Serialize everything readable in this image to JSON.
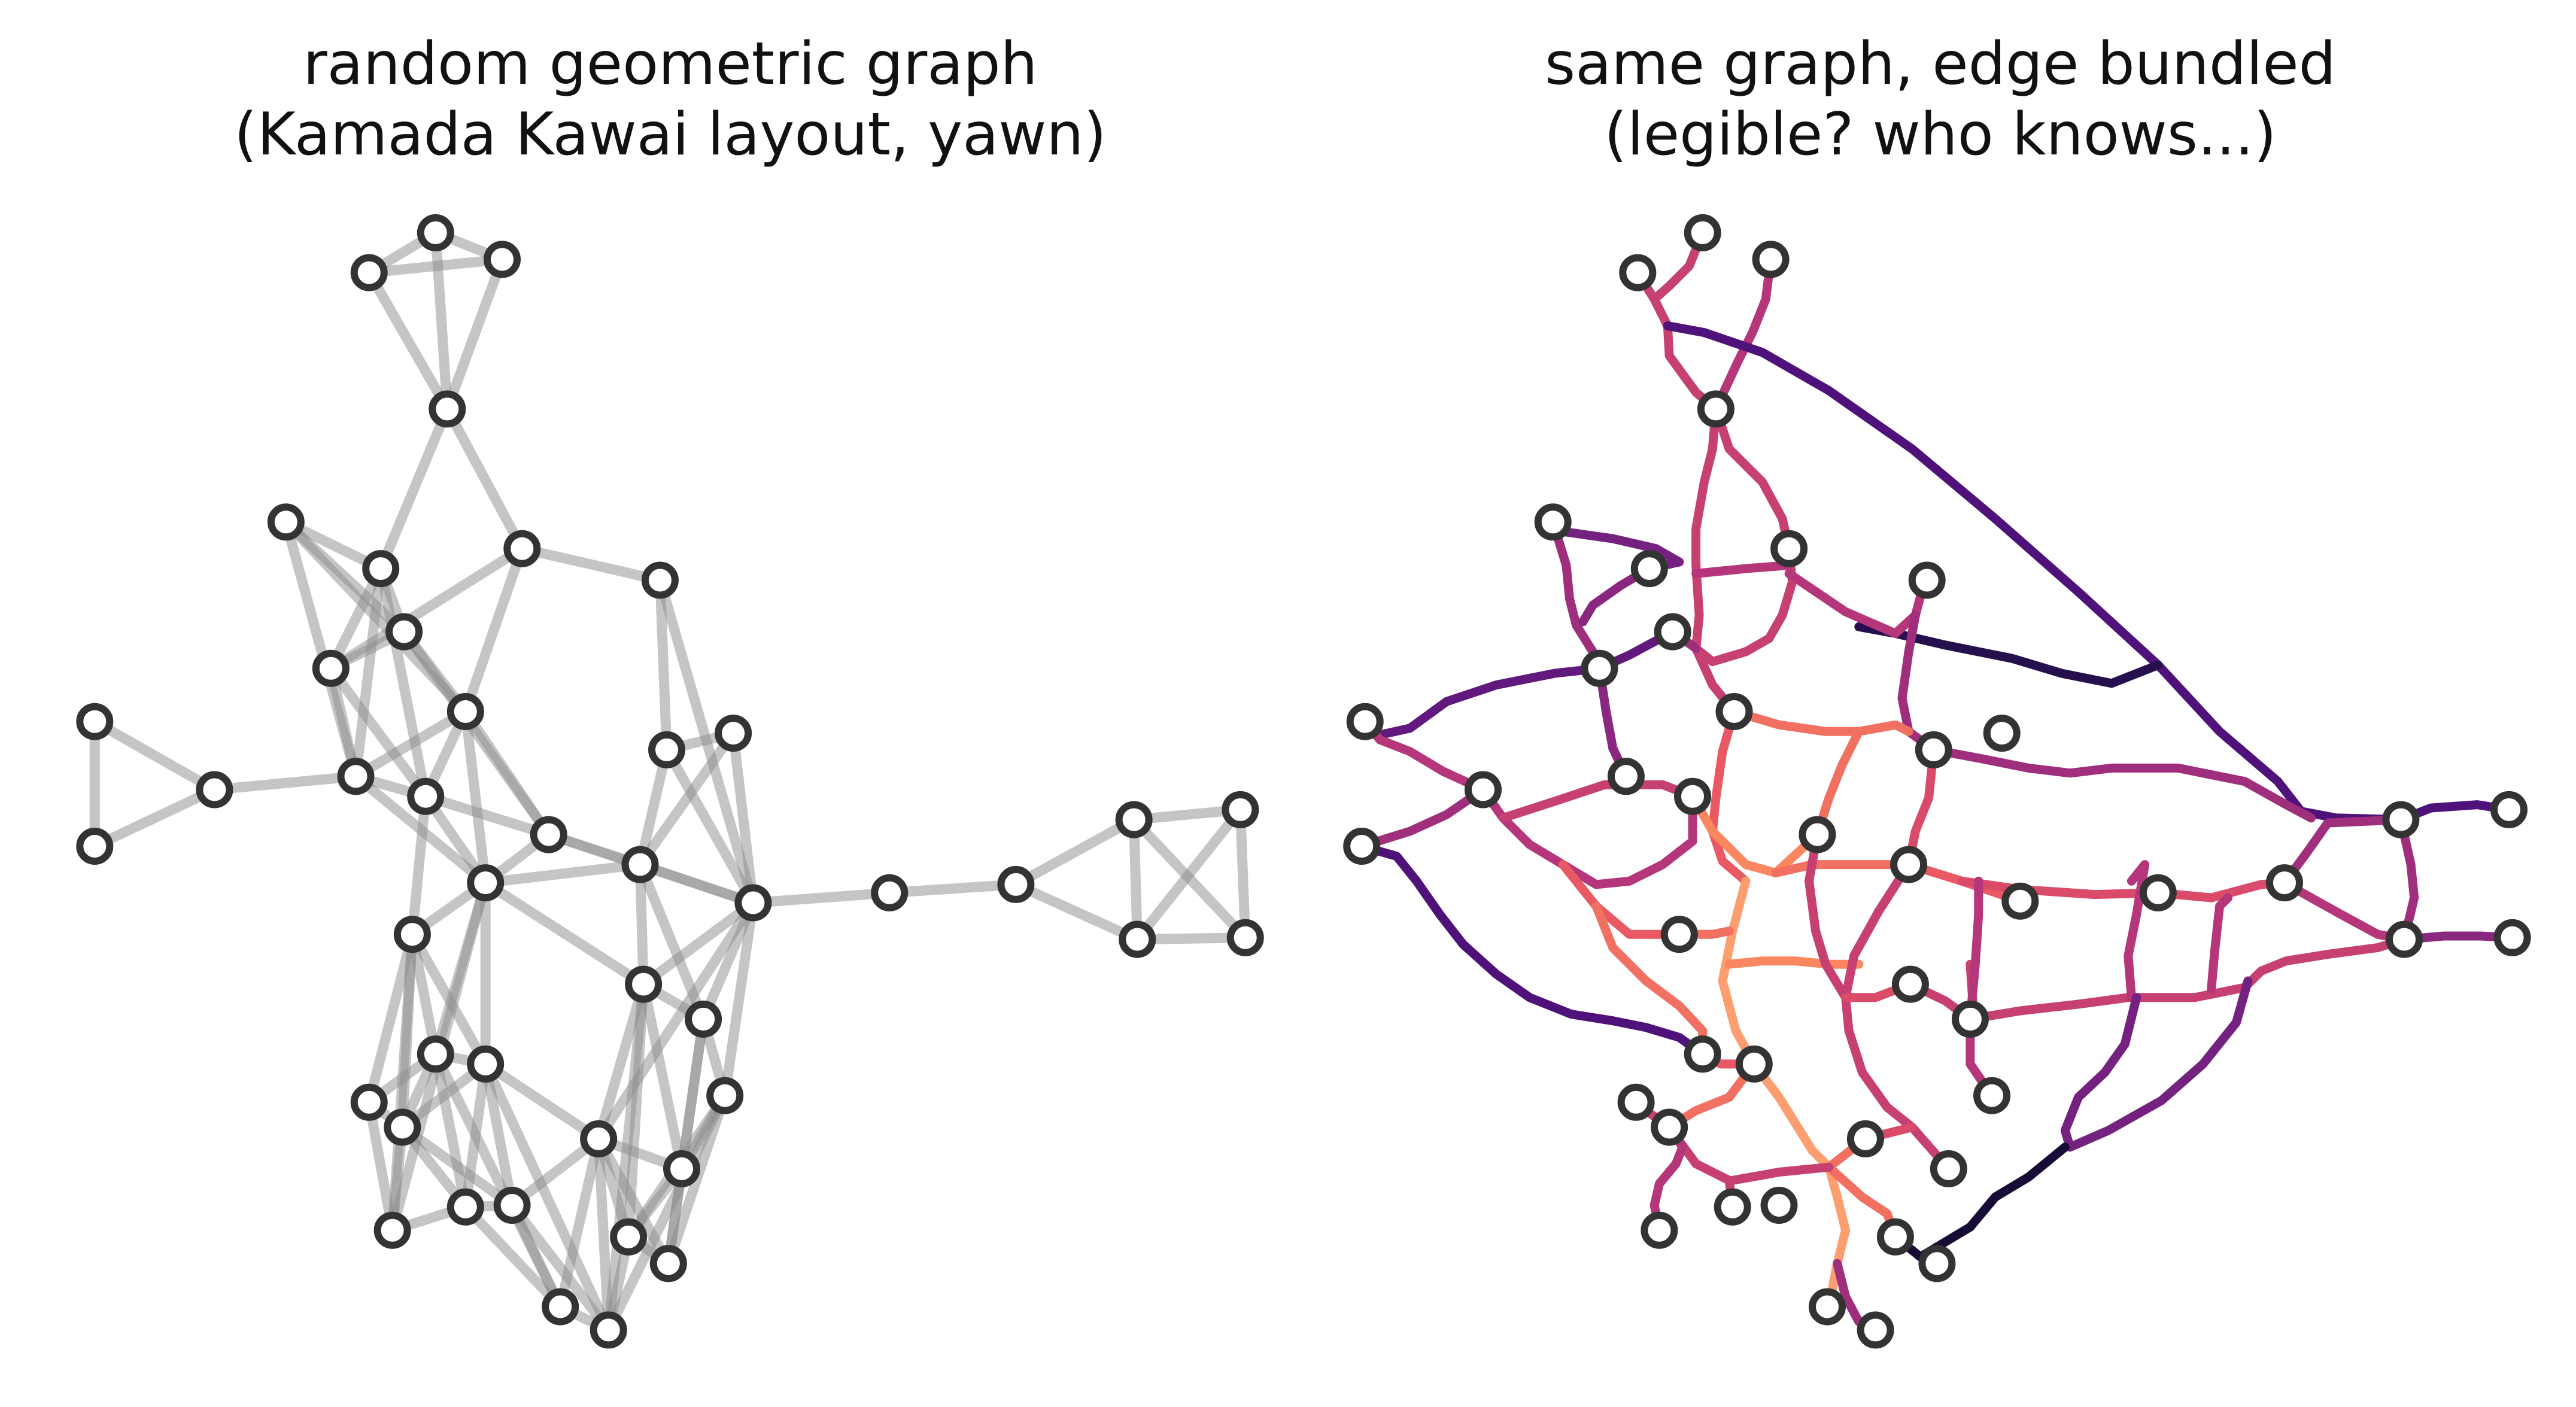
{
  "panels": [
    {
      "title_line1": "random geometric graph",
      "title_line2": "(Kamada Kawai layout, yawn)",
      "edge_color": "#8c8c8c"
    },
    {
      "title_line1": "same graph, edge bundled",
      "title_line2": "(legible? who knows...)",
      "colormap": "magma"
    }
  ],
  "node_style": {
    "fill": "#ffffff",
    "stroke": "#333333"
  }
}
